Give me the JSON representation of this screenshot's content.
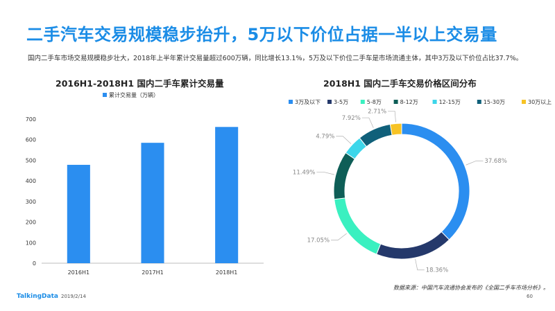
{
  "header": {
    "title": "二手汽车交易规模稳步抬升，5万以下价位占据一半以上交易量",
    "subtitle": "国内二手车市场交易规模稳步壮大，2018年上半年累计交易量超过600万辆，同比增长13.1%，5万及以下价位二手车是市场流通主体，其中3万及以下价位占比37.7%。"
  },
  "chart_data": [
    {
      "type": "bar",
      "title": "2016H1-2018H1  国内二手车累计交易量",
      "categories": [
        "2016H1",
        "2017H1",
        "2018H1"
      ],
      "series": [
        {
          "name": "累计交易量（万辆）",
          "values": [
            478,
            585,
            662
          ],
          "color": "#2b8ef0"
        }
      ],
      "ylim": [
        0,
        700
      ],
      "yticks": [
        0,
        100,
        200,
        300,
        400,
        500,
        600,
        700
      ],
      "legend_position": "top",
      "grid": false
    },
    {
      "type": "pie",
      "style": "donut",
      "title": "2018H1  国内二手车交易价格区间分布",
      "legend_position": "top",
      "slices": [
        {
          "label": "3万及以下",
          "value": 37.68,
          "display": "37.68%",
          "color": "#2b8ef0"
        },
        {
          "label": "3-5万",
          "value": 18.36,
          "display": "18.36%",
          "color": "#25396b"
        },
        {
          "label": "5-8万",
          "value": 17.05,
          "display": "17.05%",
          "color": "#3af0c0"
        },
        {
          "label": "8-12万",
          "value": 11.49,
          "display": "11.49%",
          "color": "#0e5e57"
        },
        {
          "label": "12-15万",
          "value": 4.79,
          "display": "4.79%",
          "color": "#3dd6ea"
        },
        {
          "label": "15-30万",
          "value": 7.92,
          "display": "7.92%",
          "color": "#10607a"
        },
        {
          "label": "30万以上",
          "value": 2.71,
          "display": "2.71%",
          "color": "#f7c325"
        }
      ]
    }
  ],
  "source": "数据来源：中国汽车流通协会发布的《全国二手车市场分析》。",
  "footer": {
    "brand": "TalkingData",
    "date": "2019/2/14",
    "page": "60"
  }
}
